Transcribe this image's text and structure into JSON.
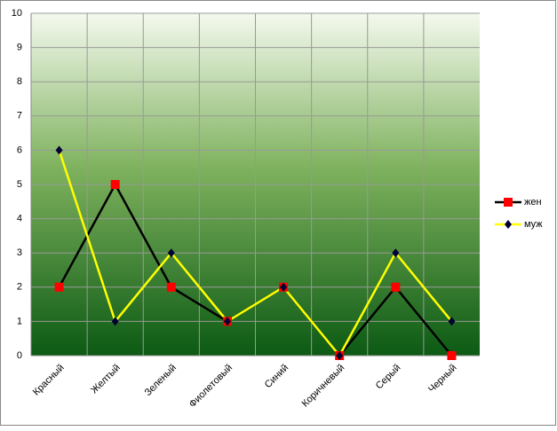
{
  "chart_data": {
    "type": "line",
    "categories": [
      "Красный",
      "Желтый",
      "Зеленый",
      "Фиолетовый",
      "Синий",
      "Коричневый",
      "Серый",
      "Черный"
    ],
    "series": [
      {
        "name": "жен",
        "color": "#000000",
        "marker": "square",
        "marker_color": "#ff0000",
        "values": [
          2,
          5,
          2,
          1,
          2,
          0,
          2,
          0
        ]
      },
      {
        "name": "муж",
        "color": "#ffff00",
        "marker": "diamond",
        "marker_color": "#000033",
        "values": [
          6,
          1,
          3,
          1,
          2,
          0,
          3,
          1
        ]
      }
    ],
    "ylim": [
      0,
      10
    ],
    "yticks": [
      0,
      1,
      2,
      3,
      4,
      5,
      6,
      7,
      8,
      9,
      10
    ],
    "grid": true,
    "legend": "right"
  }
}
